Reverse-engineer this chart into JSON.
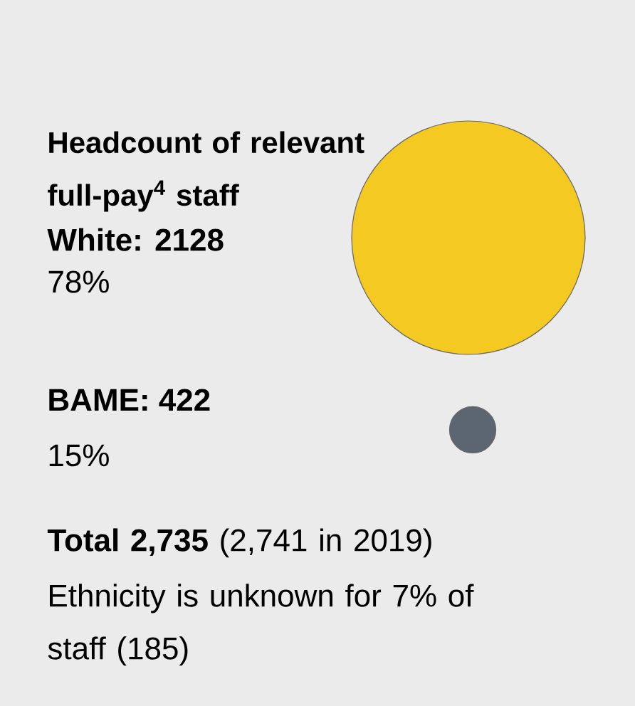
{
  "chart_data": {
    "type": "other",
    "title": "Headcount of relevant full-pay$^{4}$ staff",
    "categories": [
      null,
      null
    ],
    "values": [
      2128,
      422
    ],
    "value_labels": [
      "White: 2128",
      "BAME: 422"
    ],
    "colors": [
      "#f4c922",
      "#5b6670"
    ],
    "annotations": [
      "78%",
      "15%",
      "**Total 2,735** (2,741 in 2019)",
      "Ethnicity is unknown for 7% of staff (185)"
    ]
  }
}
